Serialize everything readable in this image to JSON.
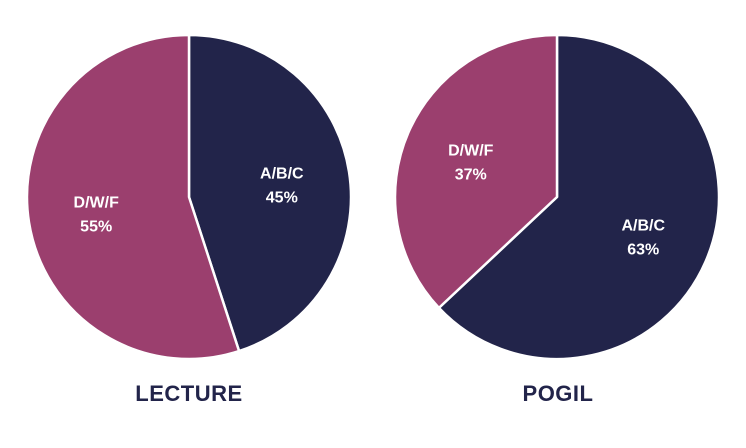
{
  "chart_data": [
    {
      "type": "pie",
      "title": "LECTURE",
      "categories": [
        "A/B/C",
        "D/W/F"
      ],
      "values": [
        45,
        55
      ],
      "value_labels": [
        "45%",
        "55%"
      ],
      "colors": [
        "#22244a",
        "#9b3f6e"
      ],
      "start_angle_deg": 0,
      "direction": "clockwise",
      "legend": "none"
    },
    {
      "type": "pie",
      "title": "POGIL",
      "categories": [
        "A/B/C",
        "D/W/F"
      ],
      "values": [
        63,
        37
      ],
      "value_labels": [
        "63%",
        "37%"
      ],
      "colors": [
        "#22244a",
        "#9b3f6e"
      ],
      "start_angle_deg": 0,
      "direction": "clockwise",
      "legend": "none"
    }
  ]
}
